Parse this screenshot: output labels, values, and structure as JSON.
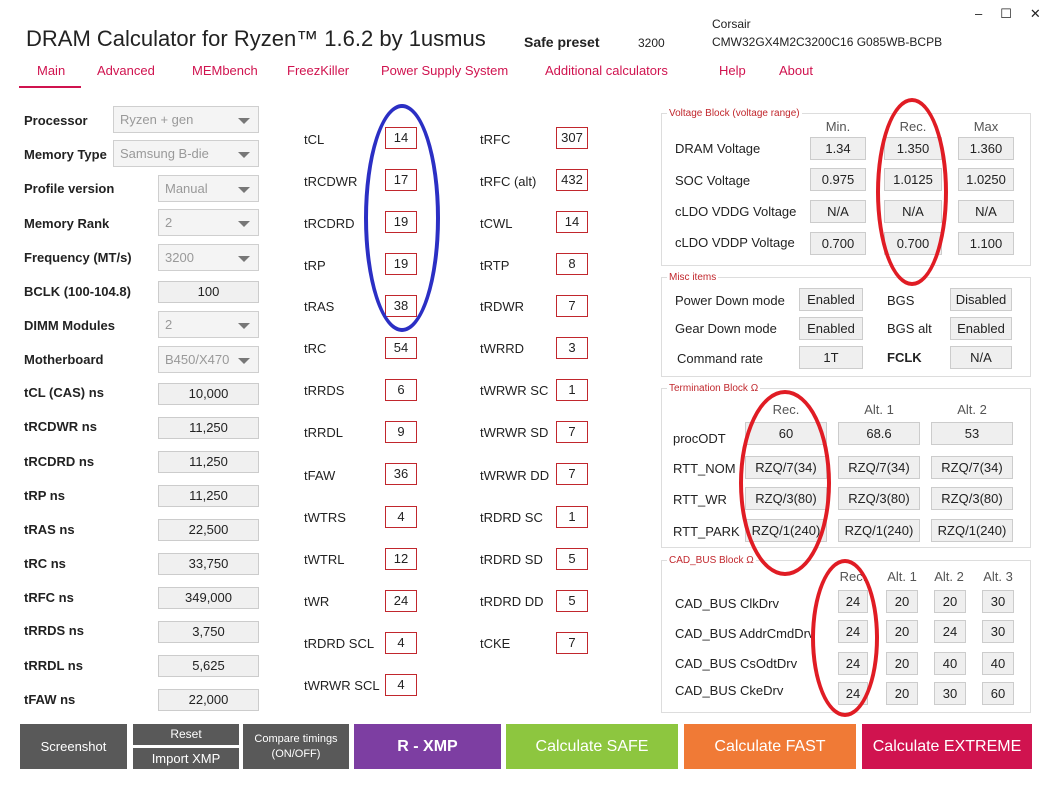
{
  "app": {
    "title": "DRAM Calculator for Ryzen™ 1.6.2 by 1usmus",
    "safe_preset_label": "Safe preset",
    "safe_preset_value": "3200",
    "brand": "Corsair",
    "part_number": "CMW32GX4M2C3200C16 G085WB-BCPB",
    "window_controls": [
      "–",
      "☐",
      "✕"
    ]
  },
  "nav": [
    "Main",
    "Advanced",
    "MEMbench",
    "FreezKiller",
    "Power Supply System",
    "Additional calculators",
    "Help",
    "About"
  ],
  "settings": [
    {
      "label": "Processor",
      "value": "Ryzen + gen"
    },
    {
      "label": "Memory Type",
      "value": "Samsung B-die"
    },
    {
      "label": "Profile version",
      "value": "Manual"
    },
    {
      "label": "Memory Rank",
      "value": "2"
    },
    {
      "label": "Frequency (MT/s)",
      "value": "3200"
    },
    {
      "label": "BCLK (100-104.8)",
      "value": "100"
    },
    {
      "label": "DIMM Modules",
      "value": "2"
    },
    {
      "label": "Motherboard",
      "value": "B450/X470"
    }
  ],
  "ns": [
    {
      "label": "tCL (CAS) ns",
      "value": "10,000"
    },
    {
      "label": "tRCDWR ns",
      "value": "11,250"
    },
    {
      "label": "tRCDRD ns",
      "value": "11,250"
    },
    {
      "label": "tRP ns",
      "value": "11,250"
    },
    {
      "label": "tRAS ns",
      "value": "22,500"
    },
    {
      "label": "tRC ns",
      "value": "33,750"
    },
    {
      "label": "tRFC ns",
      "value": "349,000"
    },
    {
      "label": "tRRDS ns",
      "value": "3,750"
    },
    {
      "label": "tRRDL ns",
      "value": "5,625"
    },
    {
      "label": "tFAW ns",
      "value": "22,000"
    }
  ],
  "timings_left": [
    {
      "label": "tCL",
      "value": "14"
    },
    {
      "label": "tRCDWR",
      "value": "17"
    },
    {
      "label": "tRCDRD",
      "value": "19"
    },
    {
      "label": "tRP",
      "value": "19"
    },
    {
      "label": "tRAS",
      "value": "38"
    },
    {
      "label": "tRC",
      "value": "54"
    },
    {
      "label": "tRRDS",
      "value": "6"
    },
    {
      "label": "tRRDL",
      "value": "9"
    },
    {
      "label": "tFAW",
      "value": "36"
    },
    {
      "label": "tWTRS",
      "value": "4"
    },
    {
      "label": "tWTRL",
      "value": "12"
    },
    {
      "label": "tWR",
      "value": "24"
    },
    {
      "label": "tRDRD SCL",
      "value": "4"
    },
    {
      "label": "tWRWR SCL",
      "value": "4"
    }
  ],
  "timings_right": [
    {
      "label": "tRFC",
      "value": "307"
    },
    {
      "label": "tRFC (alt)",
      "value": "432"
    },
    {
      "label": "tCWL",
      "value": "14"
    },
    {
      "label": "tRTP",
      "value": "8"
    },
    {
      "label": "tRDWR",
      "value": "7"
    },
    {
      "label": "tWRRD",
      "value": "3"
    },
    {
      "label": "tWRWR SC",
      "value": "1"
    },
    {
      "label": "tWRWR SD",
      "value": "7"
    },
    {
      "label": "tWRWR DD",
      "value": "7"
    },
    {
      "label": "tRDRD SC",
      "value": "1"
    },
    {
      "label": "tRDRD SD",
      "value": "5"
    },
    {
      "label": "tRDRD DD",
      "value": "5"
    },
    {
      "label": "tCKE",
      "value": "7"
    }
  ],
  "voltage": {
    "title": "Voltage Block (voltage range)",
    "headers": [
      "Min.",
      "Rec.",
      "Max"
    ],
    "rows": [
      {
        "label": "DRAM Voltage",
        "values": [
          "1.34",
          "1.350",
          "1.360"
        ]
      },
      {
        "label": "SOC Voltage",
        "values": [
          "0.975",
          "1.0125",
          "1.0250"
        ]
      },
      {
        "label": "cLDO VDDG Voltage",
        "values": [
          "N/A",
          "N/A",
          "N/A"
        ]
      },
      {
        "label": "cLDO VDDP Voltage",
        "values": [
          "0.700",
          "0.700",
          "1.100"
        ]
      }
    ]
  },
  "misc": {
    "title": "Misc items",
    "rows": [
      {
        "label": "Power Down mode",
        "value": "Enabled",
        "label2": "BGS",
        "value2": "Disabled"
      },
      {
        "label": "Gear Down mode",
        "value": "Enabled",
        "label2": "BGS alt",
        "value2": "Enabled"
      },
      {
        "label": "Command rate",
        "value": "1T",
        "label2": "FCLK",
        "value2": "N/A"
      }
    ]
  },
  "termination": {
    "title": "Termination Block Ω",
    "headers": [
      "Rec.",
      "Alt. 1",
      "Alt. 2"
    ],
    "rows": [
      {
        "label": "procODT",
        "values": [
          "60",
          "68.6",
          "53"
        ]
      },
      {
        "label": "RTT_NOM",
        "values": [
          "RZQ/7(34)",
          "RZQ/7(34)",
          "RZQ/7(34)"
        ]
      },
      {
        "label": "RTT_WR",
        "values": [
          "RZQ/3(80)",
          "RZQ/3(80)",
          "RZQ/3(80)"
        ]
      },
      {
        "label": "RTT_PARK",
        "values": [
          "RZQ/1(240)",
          "RZQ/1(240)",
          "RZQ/1(240)"
        ]
      }
    ]
  },
  "cadbus": {
    "title": "CAD_BUS Block Ω",
    "headers": [
      "Rec.",
      "Alt. 1",
      "Alt. 2",
      "Alt. 3"
    ],
    "rows": [
      {
        "label": "CAD_BUS ClkDrv",
        "values": [
          "24",
          "20",
          "20",
          "30"
        ]
      },
      {
        "label": "CAD_BUS AddrCmdDrv",
        "values": [
          "24",
          "20",
          "24",
          "30"
        ]
      },
      {
        "label": "CAD_BUS CsOdtDrv",
        "values": [
          "24",
          "20",
          "40",
          "40"
        ]
      },
      {
        "label": "CAD_BUS CkeDrv",
        "values": [
          "24",
          "20",
          "30",
          "60"
        ]
      }
    ]
  },
  "buttons": {
    "screenshot": "Screenshot",
    "reset": "Reset",
    "import_xmp": "Import XMP",
    "compare": "Compare timings (ON/OFF)",
    "r_xmp": "R - XMP",
    "calc_safe": "Calculate SAFE",
    "calc_fast": "Calculate FAST",
    "calc_extreme": "Calculate EXTREME"
  },
  "colors": {
    "accent": "#d0134f",
    "annotation_blue": "#2b2fc4",
    "annotation_red": "#e01c24",
    "btn_dark": "#595959",
    "btn_purple": "#7d3ea2",
    "btn_green": "#8dc63f",
    "btn_orange": "#f07a36",
    "btn_red": "#d0134f"
  }
}
